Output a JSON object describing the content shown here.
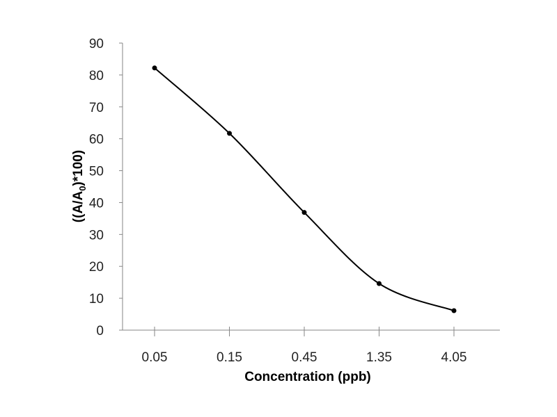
{
  "chart_data": {
    "type": "line",
    "title": "",
    "xlabel": "Concentration (ppb)",
    "ylabel_parts": [
      "((A/A",
      "0",
      ")*100)"
    ],
    "categories": [
      "0.05",
      "0.15",
      "0.45",
      "1.35",
      "4.05"
    ],
    "values": [
      82.2,
      61.7,
      36.9,
      14.6,
      6.1
    ],
    "ylim": [
      0,
      90
    ],
    "yticks": [
      "0",
      "10",
      "20",
      "30",
      "40",
      "50",
      "60",
      "70",
      "80",
      "90"
    ],
    "grid": false,
    "smooth": true,
    "line_color": "#000000",
    "axis_color": "#868686"
  }
}
